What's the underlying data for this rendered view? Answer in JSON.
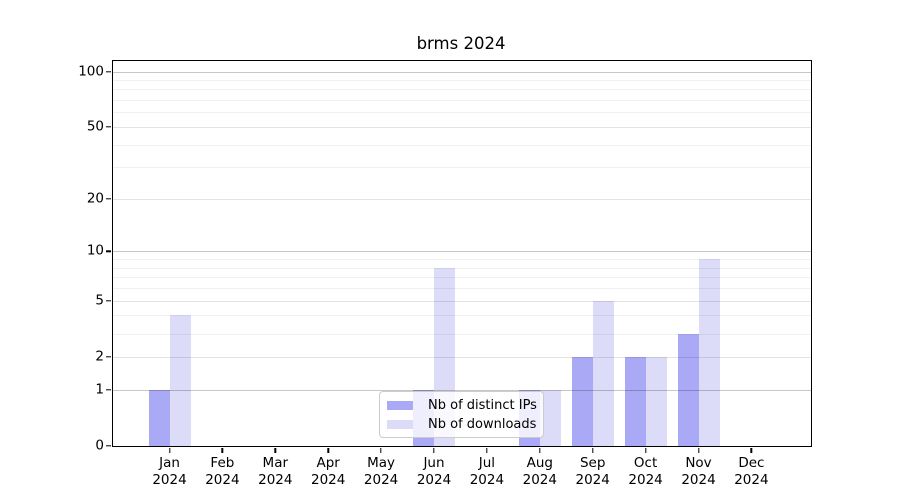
{
  "chart_data": {
    "type": "bar",
    "title": "brms 2024",
    "categories": [
      "Jan",
      "Feb",
      "Mar",
      "Apr",
      "May",
      "Jun",
      "Jul",
      "Aug",
      "Sep",
      "Oct",
      "Nov",
      "Dec"
    ],
    "category_year": "2024",
    "series": [
      {
        "name": "Nb of distinct IPs",
        "color": "#a9a9f5",
        "values": [
          1,
          0,
          0,
          0,
          0,
          1,
          0,
          1,
          2,
          2,
          3,
          0
        ]
      },
      {
        "name": "Nb of downloads",
        "color": "#dcdcf8",
        "values": [
          4,
          0,
          0,
          0,
          0,
          8,
          0,
          1,
          5,
          2,
          9,
          0
        ]
      }
    ],
    "xlabel": "",
    "ylabel": "",
    "y_scale": "log1p",
    "y_tick_values": [
      0,
      1,
      2,
      5,
      10,
      20,
      50,
      100
    ],
    "y_minor_gridline_values": [
      3,
      4,
      6,
      7,
      8,
      9,
      30,
      40,
      60,
      70,
      80,
      90
    ],
    "ylim": [
      0,
      114
    ],
    "grid": true,
    "legend": {
      "labels": [
        "Nb of distinct IPs",
        "Nb of downloads"
      ],
      "position": "lower-center"
    }
  }
}
